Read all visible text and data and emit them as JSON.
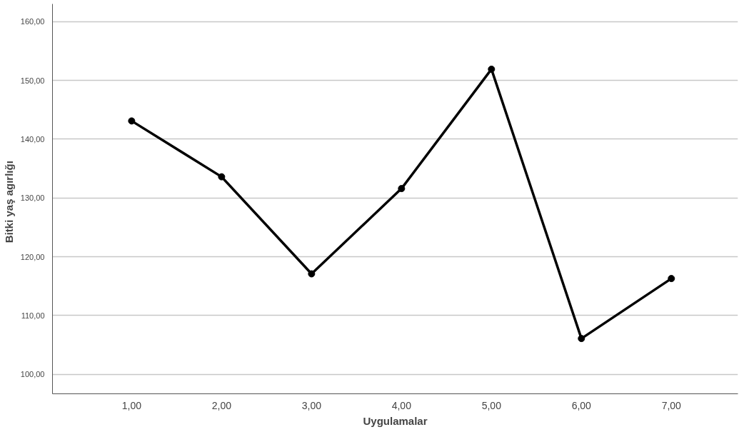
{
  "chart_data": {
    "type": "line",
    "xlabel": "Uygulamalar",
    "ylabel": "Bitki  yaş  agırlığı",
    "x": [
      1,
      2,
      3,
      4,
      5,
      6,
      7
    ],
    "series": [
      {
        "color": "#000000",
        "values": [
          143.1,
          133.6,
          117.1,
          131.6,
          151.9,
          106.1,
          116.3
        ]
      }
    ],
    "xlim": [
      0.12,
      7.74
    ],
    "ylim": [
      96.7,
      163
    ],
    "xticks": [
      {
        "value": 1,
        "label": "1,00"
      },
      {
        "value": 2,
        "label": "2,00"
      },
      {
        "value": 3,
        "label": "3,00"
      },
      {
        "value": 4,
        "label": "4,00"
      },
      {
        "value": 5,
        "label": "5,00"
      },
      {
        "value": 6,
        "label": "6,00"
      },
      {
        "value": 7,
        "label": "7,00"
      }
    ],
    "yticks": [
      {
        "value": 100,
        "label": "100,00"
      },
      {
        "value": 110,
        "label": "110,00"
      },
      {
        "value": 120,
        "label": "120,00"
      },
      {
        "value": 130,
        "label": "130,00"
      },
      {
        "value": 140,
        "label": "140,00"
      },
      {
        "value": 150,
        "label": "150,00"
      },
      {
        "value": 160,
        "label": "160,00"
      }
    ],
    "grid": "y",
    "marker": "circle",
    "line_style": "solid"
  }
}
